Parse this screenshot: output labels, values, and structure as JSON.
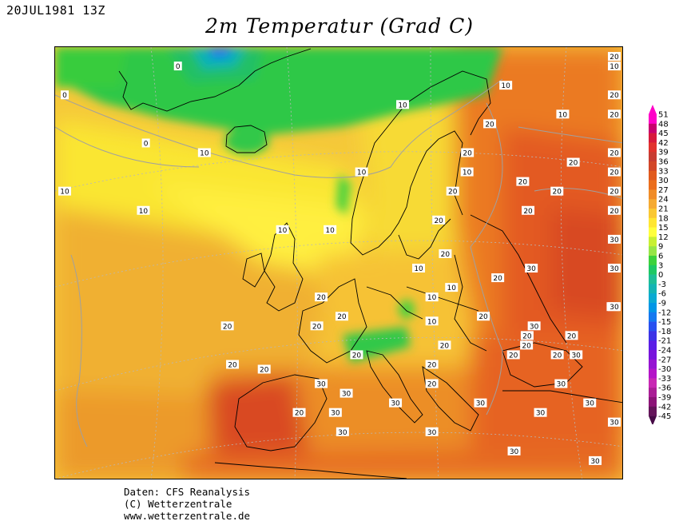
{
  "header": {
    "date": "20JUL1981 13Z",
    "title": "2m Temperatur (Grad C)"
  },
  "legend": {
    "ticks": [
      "51",
      "48",
      "45",
      "42",
      "39",
      "36",
      "33",
      "30",
      "27",
      "24",
      "21",
      "18",
      "15",
      "12",
      "9",
      "6",
      "3",
      "0",
      "-3",
      "-6",
      "-9",
      "-12",
      "-15",
      "-18",
      "-21",
      "-24",
      "-27",
      "-30",
      "-33",
      "-36",
      "-39",
      "-42",
      "-45"
    ],
    "colors": [
      "#ff00c8",
      "#c8006e",
      "#d7193c",
      "#e1322d",
      "#c83c32",
      "#d24628",
      "#e15a1e",
      "#eb6e1e",
      "#f08c28",
      "#f5aa32",
      "#fac832",
      "#ffe632",
      "#ffff3c",
      "#c8f032",
      "#96e646",
      "#3cd23c",
      "#1ec864",
      "#1ebe96",
      "#14b4b4",
      "#0aaad2",
      "#0096e6",
      "#1478f0",
      "#2850f0",
      "#3c32e6",
      "#5a1ee6",
      "#7814dc",
      "#9614d2",
      "#b414c8",
      "#c828b4",
      "#aa1e96",
      "#8c1478",
      "#64145a"
    ],
    "top_arrow_color": "#ff00c8",
    "bottom_arrow_color": "#460a46"
  },
  "contour_labels": [
    {
      "text": "0",
      "lon": -40,
      "lat": 70
    },
    {
      "text": "0",
      "lon": -22,
      "lat": 73
    },
    {
      "text": "0",
      "lon": -28,
      "lat": 65
    },
    {
      "text": "10",
      "lon": -48,
      "lat": 60
    },
    {
      "text": "10",
      "lon": -20,
      "lat": 64
    },
    {
      "text": "10",
      "lon": -30,
      "lat": 58
    },
    {
      "text": "10",
      "lon": -10,
      "lat": 56
    },
    {
      "text": "10",
      "lon": 2,
      "lat": 62
    },
    {
      "text": "10",
      "lon": -3,
      "lat": 56
    },
    {
      "text": "10",
      "lon": 8,
      "lat": 69
    },
    {
      "text": "10",
      "lon": 22,
      "lat": 71
    },
    {
      "text": "10",
      "lon": 30,
      "lat": 68
    },
    {
      "text": "10",
      "lon": 10,
      "lat": 52
    },
    {
      "text": "10",
      "lon": 12,
      "lat": 49
    },
    {
      "text": "10",
      "lon": 12,
      "lat": 46.5
    },
    {
      "text": "10",
      "lon": 15,
      "lat": 50
    },
    {
      "text": "10",
      "lon": 17,
      "lat": 62
    },
    {
      "text": "10",
      "lon": 42,
      "lat": 73
    },
    {
      "text": "20",
      "lon": 20,
      "lat": 67
    },
    {
      "text": "20",
      "lon": 17,
      "lat": 64
    },
    {
      "text": "20",
      "lon": 25,
      "lat": 61
    },
    {
      "text": "20",
      "lon": 15,
      "lat": 60
    },
    {
      "text": "20",
      "lon": 26,
      "lat": 58
    },
    {
      "text": "20",
      "lon": 13,
      "lat": 57
    },
    {
      "text": "20",
      "lon": 14,
      "lat": 53.5
    },
    {
      "text": "20",
      "lon": -5,
      "lat": 49
    },
    {
      "text": "20",
      "lon": -6,
      "lat": 46
    },
    {
      "text": "20",
      "lon": -2,
      "lat": 47
    },
    {
      "text": "20",
      "lon": 0,
      "lat": 43
    },
    {
      "text": "20",
      "lon": -20,
      "lat": 46
    },
    {
      "text": "20",
      "lon": -20,
      "lat": 42
    },
    {
      "text": "20",
      "lon": -15,
      "lat": 41.5
    },
    {
      "text": "20",
      "lon": 22,
      "lat": 51
    },
    {
      "text": "20",
      "lon": 20,
      "lat": 47
    },
    {
      "text": "20",
      "lon": 27,
      "lat": 45
    },
    {
      "text": "20",
      "lon": 14,
      "lat": 44
    },
    {
      "text": "20",
      "lon": 12,
      "lat": 42
    },
    {
      "text": "20",
      "lon": 12,
      "lat": 40
    },
    {
      "text": "20",
      "lon": -10,
      "lat": 37
    },
    {
      "text": "20",
      "lon": 40,
      "lat": 60
    },
    {
      "text": "20",
      "lon": 46,
      "lat": 62
    },
    {
      "text": "20",
      "lon": 44,
      "lat": 58
    },
    {
      "text": "20",
      "lon": 38,
      "lat": 64
    },
    {
      "text": "20",
      "lon": 32,
      "lat": 63
    },
    {
      "text": "20",
      "lon": 30,
      "lat": 60
    },
    {
      "text": "20",
      "lon": 42,
      "lat": 74
    },
    {
      "text": "20",
      "lon": 50,
      "lat": 70
    },
    {
      "text": "20",
      "lon": 60,
      "lat": 68
    },
    {
      "text": "20",
      "lon": 25,
      "lat": 43
    },
    {
      "text": "20",
      "lon": 27,
      "lat": 44
    },
    {
      "text": "20",
      "lon": 34,
      "lat": 45
    },
    {
      "text": "20",
      "lon": 32,
      "lat": 43
    },
    {
      "text": "30",
      "lon": -4,
      "lat": 37
    },
    {
      "text": "30",
      "lon": -2,
      "lat": 39
    },
    {
      "text": "30",
      "lon": -6,
      "lat": 40
    },
    {
      "text": "30",
      "lon": -3,
      "lat": 35
    },
    {
      "text": "30",
      "lon": 6,
      "lat": 38
    },
    {
      "text": "30",
      "lon": 27,
      "lat": 52
    },
    {
      "text": "30",
      "lon": 28,
      "lat": 46
    },
    {
      "text": "30",
      "lon": 40,
      "lat": 48
    },
    {
      "text": "30",
      "lon": 50,
      "lat": 52
    },
    {
      "text": "30",
      "lon": 54,
      "lat": 48
    },
    {
      "text": "30",
      "lon": 47,
      "lat": 55
    },
    {
      "text": "30",
      "lon": 35,
      "lat": 43
    },
    {
      "text": "30",
      "lon": 30,
      "lat": 37
    },
    {
      "text": "30",
      "lon": 33,
      "lat": 40
    },
    {
      "text": "30",
      "lon": 38,
      "lat": 38
    },
    {
      "text": "30",
      "lon": 43,
      "lat": 36
    },
    {
      "text": "30",
      "lon": 50,
      "lat": 36
    },
    {
      "text": "30",
      "lon": 20,
      "lat": 38
    },
    {
      "text": "30",
      "lon": 12,
      "lat": 35
    },
    {
      "text": "30",
      "lon": 26,
      "lat": 33
    },
    {
      "text": "30",
      "lon": 40,
      "lat": 32
    }
  ],
  "credits": {
    "line1": "Daten: CFS Reanalysis",
    "line2": "(C) Wetterzentrale",
    "line3": "www.wetterzentrale.de"
  }
}
